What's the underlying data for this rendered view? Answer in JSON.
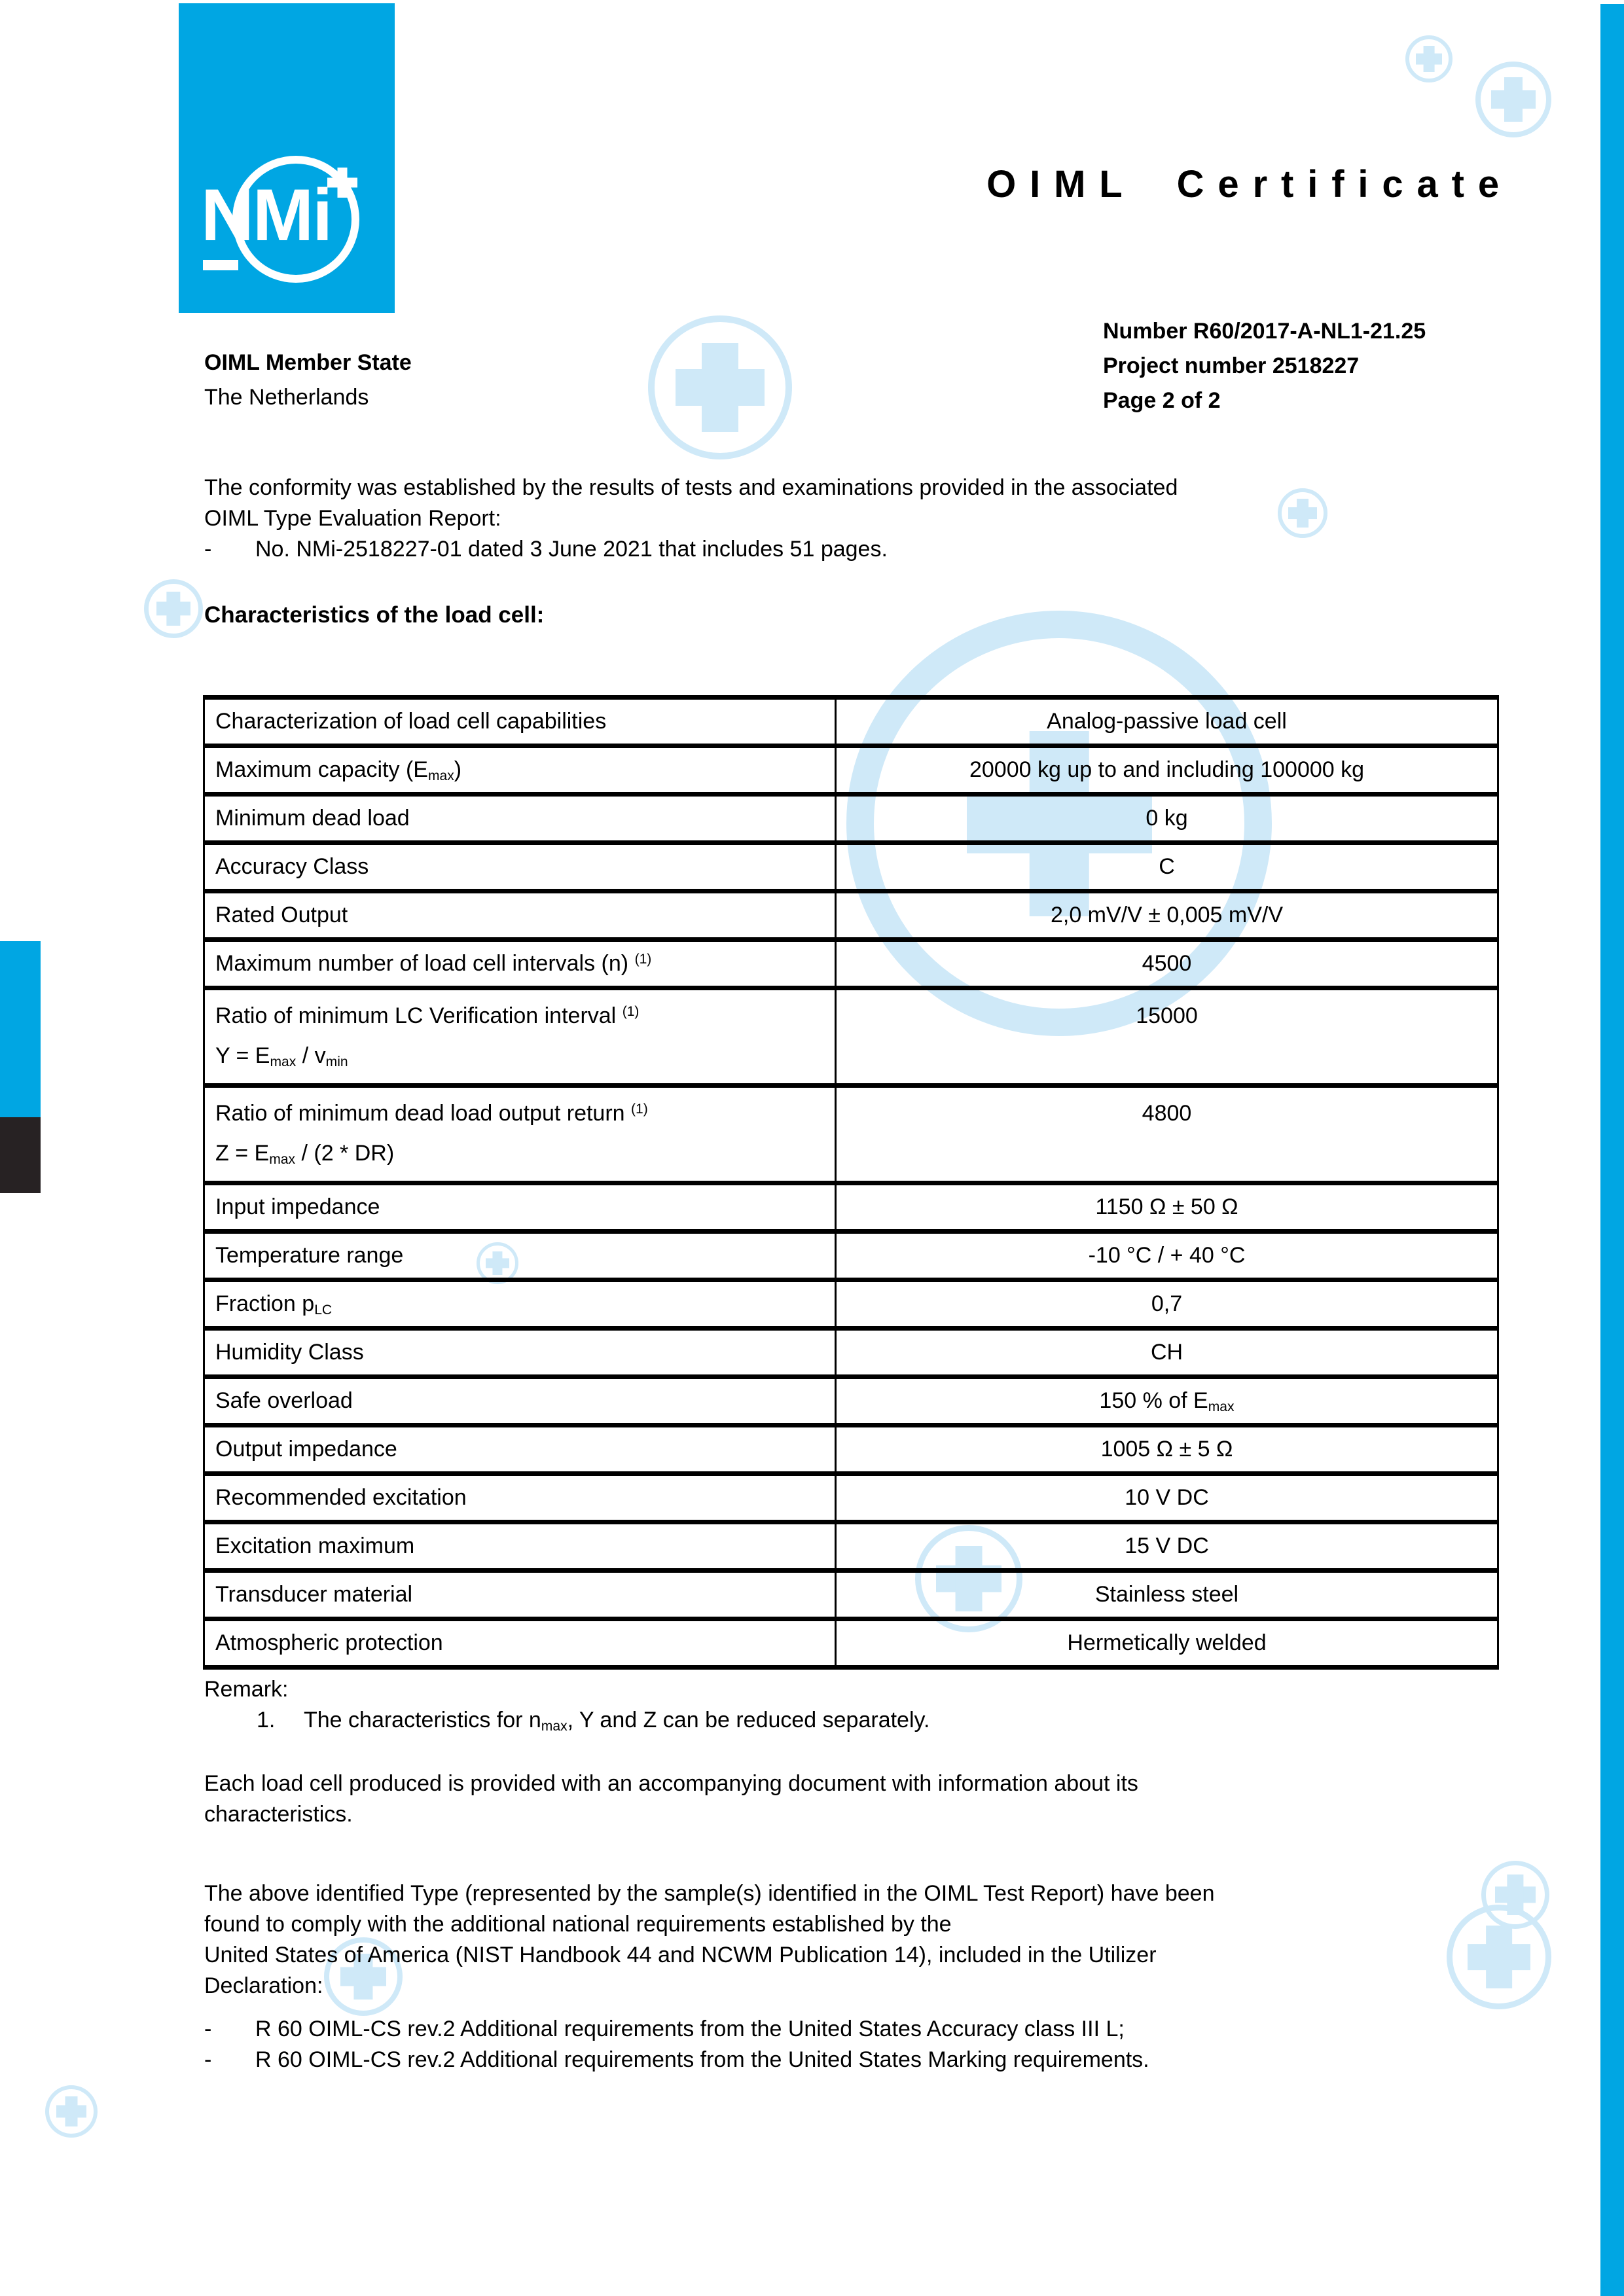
{
  "brand": {
    "logo_text": "NMi",
    "cyan": "#00a6e3",
    "dark_bar": "#272223",
    "watermark_color": "#cfe9f8"
  },
  "header": {
    "title": "OIML Certificate",
    "number_line": "Number R60/2017-A-NL1-21.25",
    "project_line": "Project number 2518227",
    "page_line": "Page 2 of 2",
    "member_state_label": "OIML Member State",
    "member_state_value": "The Netherlands"
  },
  "intro": {
    "lines": [
      "The conformity was established by the results of tests and examinations provided in the associated",
      "OIML Type Evaluation Report:"
    ],
    "marker": "-",
    "bullet": "No. NMi-2518227-01 dated 3 June 2021 that includes 51 pages."
  },
  "characteristics_heading": "Characteristics of the load cell:",
  "table": {
    "rows": [
      {
        "label": "Characterization of load cell capabilities",
        "value": "Analog-passive load cell"
      },
      {
        "label": "Maximum capacity (E_{max})",
        "value": "20000 kg up to and including 100000 kg"
      },
      {
        "label": "Minimum dead load",
        "value": "0 kg"
      },
      {
        "label": "Accuracy Class",
        "value": "C"
      },
      {
        "label": "Rated Output",
        "value": "2,0 mV/V ± 0,005 mV/V"
      },
      {
        "label": "Maximum number of load cell intervals (n) ^{(1)}",
        "value": "4500"
      },
      {
        "label": "Ratio of minimum LC Verification interval ^{(1)}\nY = E_{max} / v_{min}",
        "value": "15000"
      },
      {
        "label": "Ratio of minimum dead load output return  ^{(1)}\nZ = E_{max} / (2 * DR)",
        "value": "4800"
      },
      {
        "label": "Input impedance",
        "value": "1150 Ω ± 50 Ω"
      },
      {
        "label": "Temperature range",
        "value": "-10 °C / + 40 °C"
      },
      {
        "label": "Fraction p_{LC}",
        "value": "0,7"
      },
      {
        "label": "Humidity Class",
        "value": "CH"
      },
      {
        "label": "Safe overload",
        "value": "150 % of E_{max}"
      },
      {
        "label": "Output impedance",
        "value": "1005 Ω ± 5 Ω"
      },
      {
        "label": "Recommended excitation",
        "value": "10 V DC"
      },
      {
        "label": "Excitation maximum",
        "value": "15 V DC"
      },
      {
        "label": "Transducer material",
        "value": "Stainless steel"
      },
      {
        "label": "Atmospheric protection",
        "value": "Hermetically welded"
      }
    ]
  },
  "remark": {
    "heading": "Remark:",
    "item_number": "1.",
    "item_text": "The characteristics for n_{max}, Y and Z can be reduced separately."
  },
  "each_cell_paragraph": {
    "lines": [
      "Each load cell produced is provided with an accompanying document with information about its",
      "characteristics."
    ]
  },
  "declaration": {
    "lines": [
      "The above identified Type (represented by the sample(s) identified in the OIML Test Report) have been",
      "found to comply with the additional national requirements established by the",
      "United States of America (NIST Handbook 44 and NCWM Publication 14), included in the Utilizer",
      "Declaration:"
    ],
    "marker": "-",
    "bullets": [
      "R 60 OIML-CS rev.2 Additional requirements from the United States Accuracy class III L;",
      "R 60 OIML-CS rev.2 Additional requirements from the United States Marking requirements."
    ]
  },
  "icons": {
    "watermark": "plus-circle-watermark",
    "logo_plus": "plus-icon",
    "logo_underscore": "underscore-mark"
  }
}
